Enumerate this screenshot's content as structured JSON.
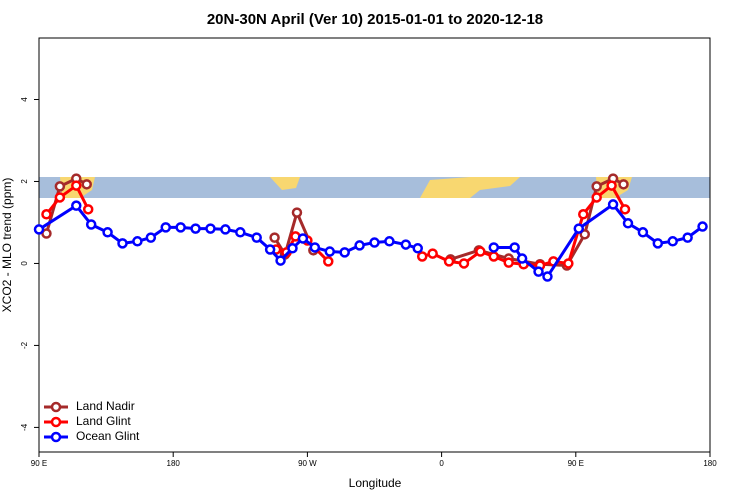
{
  "chart_data": {
    "type": "line",
    "title": "20N-30N April (Ver 10)   2015-01-01 to 2020-12-18",
    "x_label": "Longitude",
    "y_label": "XCO2 - MLO trend (ppm)",
    "xlim": [
      90,
      540
    ],
    "ylim": [
      -4.6,
      5.5
    ],
    "xticks": [
      {
        "value": 90,
        "label": "90 E"
      },
      180,
      {
        "value": 270,
        "label": "90 W"
      },
      {
        "value": 360,
        "label": "0"
      },
      {
        "value": 450,
        "label": "90 E"
      },
      180
    ],
    "yticks": [
      -4,
      -2,
      0,
      2,
      4
    ],
    "legend": "bottom-left",
    "series": [
      {
        "name": "Land Nadir",
        "color": "#a52a2a",
        "x": [
          95,
          104,
          115,
          122,
          null,
          248,
          255,
          263,
          274,
          null,
          366,
          385,
          405,
          426,
          444,
          456,
          464,
          475,
          482
        ],
        "values": [
          0.73,
          1.88,
          2.07,
          1.93,
          null,
          0.63,
          0.22,
          1.24,
          0.32,
          null,
          0.1,
          0.32,
          0.12,
          -0.02,
          -0.05,
          0.71,
          1.88,
          2.07,
          1.93
        ]
      },
      {
        "name": "Land Glint",
        "color": "#ff0000",
        "x": [
          95,
          104,
          115,
          123,
          null,
          249,
          256,
          262,
          270,
          284,
          null,
          347,
          354,
          365,
          375,
          386,
          395,
          405,
          415,
          426,
          435,
          445,
          455,
          464,
          474,
          483
        ],
        "values": [
          1.2,
          1.61,
          1.9,
          1.32,
          null,
          0.34,
          0.27,
          0.66,
          0.56,
          0.05,
          null,
          0.17,
          0.24,
          0.05,
          0,
          0.29,
          0.17,
          0.02,
          -0.02,
          -0.05,
          0.05,
          0,
          1.2,
          1.61,
          1.9,
          1.32
        ]
      },
      {
        "name": "Ocean Glint",
        "color": "#0000ff",
        "x": [
          90,
          115,
          125,
          136,
          146,
          156,
          165,
          175,
          185,
          195,
          205,
          215,
          225,
          236,
          245,
          252,
          260,
          267,
          275,
          285,
          295,
          305,
          315,
          325,
          336,
          344,
          null,
          395,
          409,
          414,
          425,
          431,
          452,
          475,
          485,
          495,
          505,
          515,
          525,
          535
        ],
        "values": [
          0.83,
          1.41,
          0.95,
          0.76,
          0.49,
          0.54,
          0.63,
          0.88,
          0.88,
          0.85,
          0.85,
          0.83,
          0.76,
          0.63,
          0.34,
          0.07,
          0.37,
          0.61,
          0.39,
          0.29,
          0.27,
          0.44,
          0.51,
          0.54,
          0.46,
          0.37,
          null,
          0.39,
          0.39,
          0.12,
          -0.2,
          -0.32,
          0.85,
          1.44,
          0.98,
          0.76,
          0.49,
          0.54,
          0.63,
          0.9
        ]
      }
    ]
  }
}
